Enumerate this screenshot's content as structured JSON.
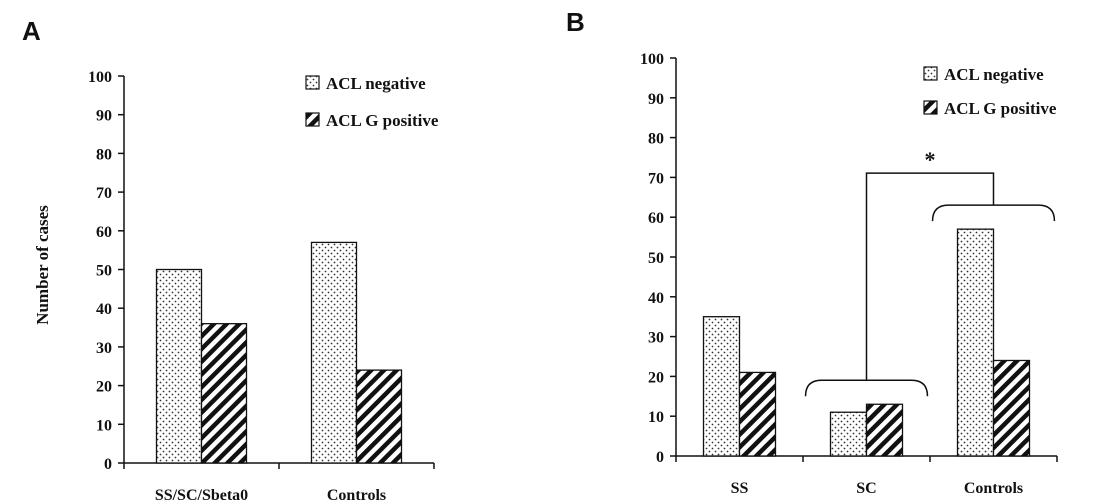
{
  "chart_data": [
    {
      "type": "bar",
      "panel": "A",
      "title": "",
      "xlabel": "",
      "ylabel": "Number of cases",
      "ylim": [
        0,
        100
      ],
      "yticks": [
        "0",
        "10",
        "20",
        "30",
        "40",
        "50",
        "60",
        "70",
        "80",
        "90",
        "100"
      ],
      "categories": [
        "SS/SC/Sbeta0",
        "Controls"
      ],
      "series": [
        {
          "name": "ACL negative",
          "pattern": "dots",
          "values": [
            50,
            57
          ]
        },
        {
          "name": "ACL G positive",
          "pattern": "hatch",
          "values": [
            36,
            24
          ]
        }
      ],
      "legend_position": "top-right",
      "grid": false
    },
    {
      "type": "bar",
      "panel": "B",
      "title": "",
      "xlabel": "",
      "ylabel": "",
      "ylim": [
        0,
        100
      ],
      "yticks": [
        "0",
        "10",
        "20",
        "30",
        "40",
        "50",
        "60",
        "70",
        "80",
        "90",
        "100"
      ],
      "categories": [
        "SS",
        "SC",
        "Controls"
      ],
      "series": [
        {
          "name": "ACL negative",
          "pattern": "dots",
          "values": [
            35,
            11,
            57
          ]
        },
        {
          "name": "ACL G positive",
          "pattern": "hatch",
          "values": [
            21,
            13,
            24
          ]
        }
      ],
      "legend_position": "top-right",
      "grid": false,
      "annotations": [
        {
          "type": "significance-bracket",
          "between": [
            "SC",
            "Controls"
          ],
          "text": "*"
        }
      ]
    }
  ]
}
